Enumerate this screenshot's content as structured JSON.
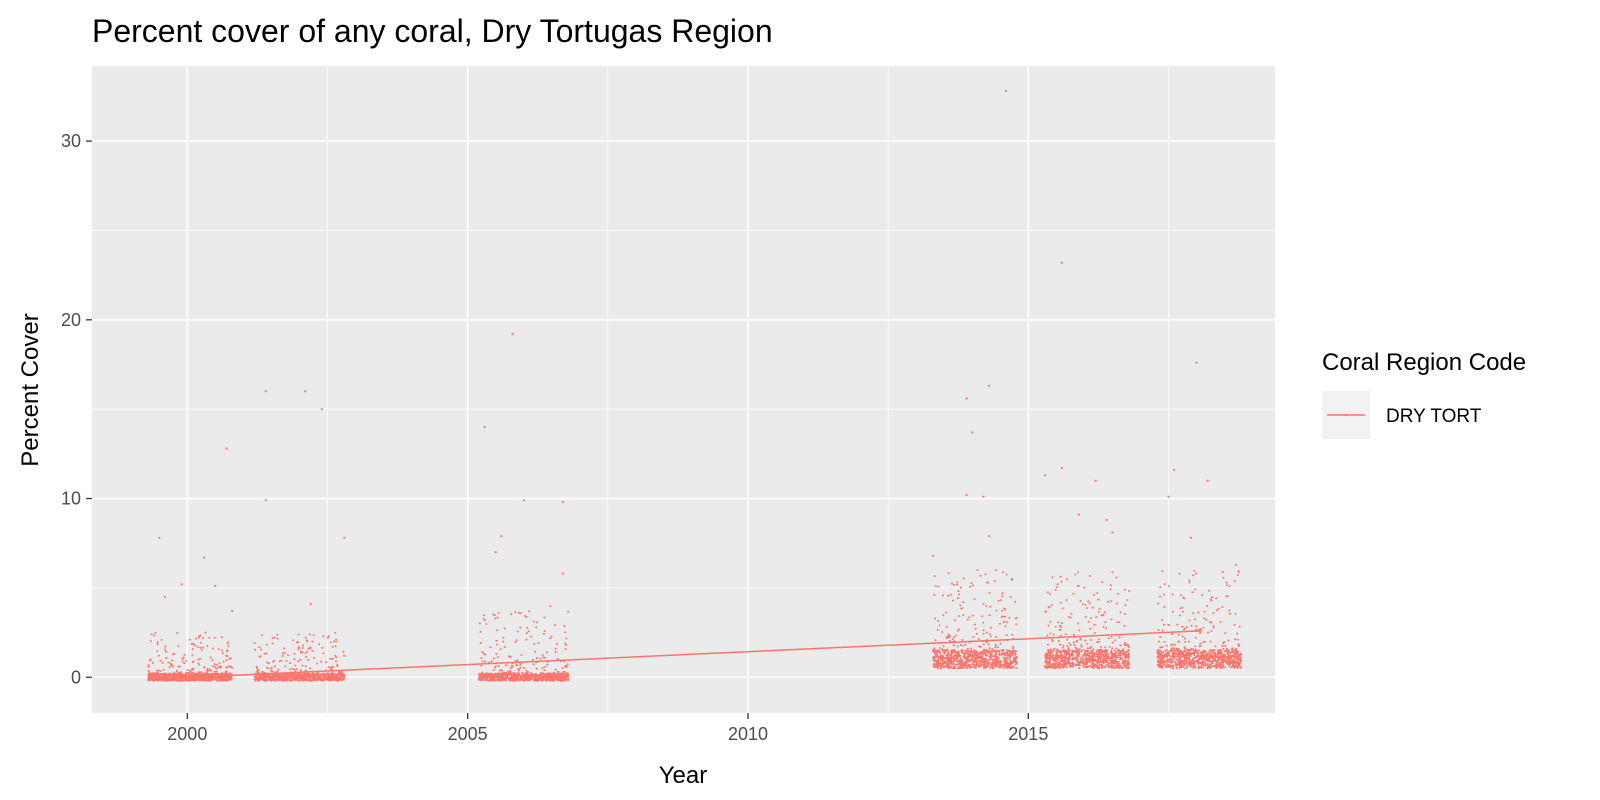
{
  "chart_data": {
    "type": "scatter",
    "title": "Percent cover of any coral, Dry Tortugas Region",
    "xlabel": "Year",
    "ylabel": "Percent Cover",
    "xlim": [
      1998.3,
      2019.4
    ],
    "ylim": [
      -2.0,
      34.2
    ],
    "x_ticks": [
      2000,
      2005,
      2010,
      2015
    ],
    "y_ticks": [
      0,
      10,
      20,
      30
    ],
    "x_tick_labels": [
      "2000",
      "2005",
      "2010",
      "2015"
    ],
    "y_tick_labels": [
      "0",
      "10",
      "20",
      "30"
    ],
    "grid": true,
    "legend": {
      "title": "Coral Region Code",
      "position": "right",
      "entries": [
        {
          "label": "DRY TORT",
          "color": "#F8766D"
        }
      ]
    },
    "series": [
      {
        "name": "DRY TORT",
        "color": "#F8766D",
        "point_clusters": [
          {
            "x_range": [
              1999.3,
              2000.8
            ],
            "base": [
              -0.2,
              0.2
            ],
            "spread_max": 2.5
          },
          {
            "x_range": [
              2001.2,
              2002.8
            ],
            "base": [
              -0.2,
              0.2
            ],
            "spread_max": 2.5
          },
          {
            "x_range": [
              2005.2,
              2006.8
            ],
            "base": [
              -0.2,
              0.2
            ],
            "spread_max": 4.0
          },
          {
            "x_range": [
              2013.3,
              2014.8
            ],
            "base": [
              0.5,
              1.5
            ],
            "spread_max": 6.0
          },
          {
            "x_range": [
              2015.3,
              2016.8
            ],
            "base": [
              0.5,
              1.5
            ],
            "spread_max": 6.0
          },
          {
            "x_range": [
              2017.3,
              2018.8
            ],
            "base": [
              0.5,
              1.5
            ],
            "spread_max": 6.0
          }
        ],
        "outliers": [
          {
            "x": 1999.5,
            "y": 7.8
          },
          {
            "x": 1999.6,
            "y": 4.5
          },
          {
            "x": 1999.9,
            "y": 5.2
          },
          {
            "x": 2000.3,
            "y": 6.7
          },
          {
            "x": 2000.5,
            "y": 5.1
          },
          {
            "x": 2000.7,
            "y": 12.8
          },
          {
            "x": 2000.8,
            "y": 3.7
          },
          {
            "x": 2001.4,
            "y": 16.0
          },
          {
            "x": 2001.4,
            "y": 9.9
          },
          {
            "x": 2002.1,
            "y": 16.0
          },
          {
            "x": 2002.4,
            "y": 15.0
          },
          {
            "x": 2002.2,
            "y": 4.1
          },
          {
            "x": 2002.8,
            "y": 7.8
          },
          {
            "x": 2005.3,
            "y": 14.0
          },
          {
            "x": 2005.8,
            "y": 19.2
          },
          {
            "x": 2005.6,
            "y": 7.9
          },
          {
            "x": 2005.5,
            "y": 7.0
          },
          {
            "x": 2006.0,
            "y": 9.9
          },
          {
            "x": 2006.7,
            "y": 9.8
          },
          {
            "x": 2006.7,
            "y": 5.8
          },
          {
            "x": 2014.6,
            "y": 32.8
          },
          {
            "x": 2013.9,
            "y": 15.6
          },
          {
            "x": 2014.3,
            "y": 16.3
          },
          {
            "x": 2014.0,
            "y": 13.7
          },
          {
            "x": 2013.9,
            "y": 10.2
          },
          {
            "x": 2014.2,
            "y": 10.1
          },
          {
            "x": 2014.3,
            "y": 7.9
          },
          {
            "x": 2013.3,
            "y": 6.8
          },
          {
            "x": 2015.3,
            "y": 11.3
          },
          {
            "x": 2015.6,
            "y": 11.7
          },
          {
            "x": 2015.6,
            "y": 23.2
          },
          {
            "x": 2016.2,
            "y": 11.0
          },
          {
            "x": 2015.9,
            "y": 9.1
          },
          {
            "x": 2016.4,
            "y": 8.8
          },
          {
            "x": 2016.5,
            "y": 8.1
          },
          {
            "x": 2017.5,
            "y": 10.1
          },
          {
            "x": 2017.6,
            "y": 11.6
          },
          {
            "x": 2018.0,
            "y": 17.6
          },
          {
            "x": 2018.2,
            "y": 11.0
          },
          {
            "x": 2017.9,
            "y": 7.8
          },
          {
            "x": 2018.7,
            "y": 6.3
          }
        ],
        "trend_line": {
          "x": [
            1999.4,
            2018.1
          ],
          "y": [
            -0.1,
            2.6
          ]
        }
      }
    ]
  }
}
